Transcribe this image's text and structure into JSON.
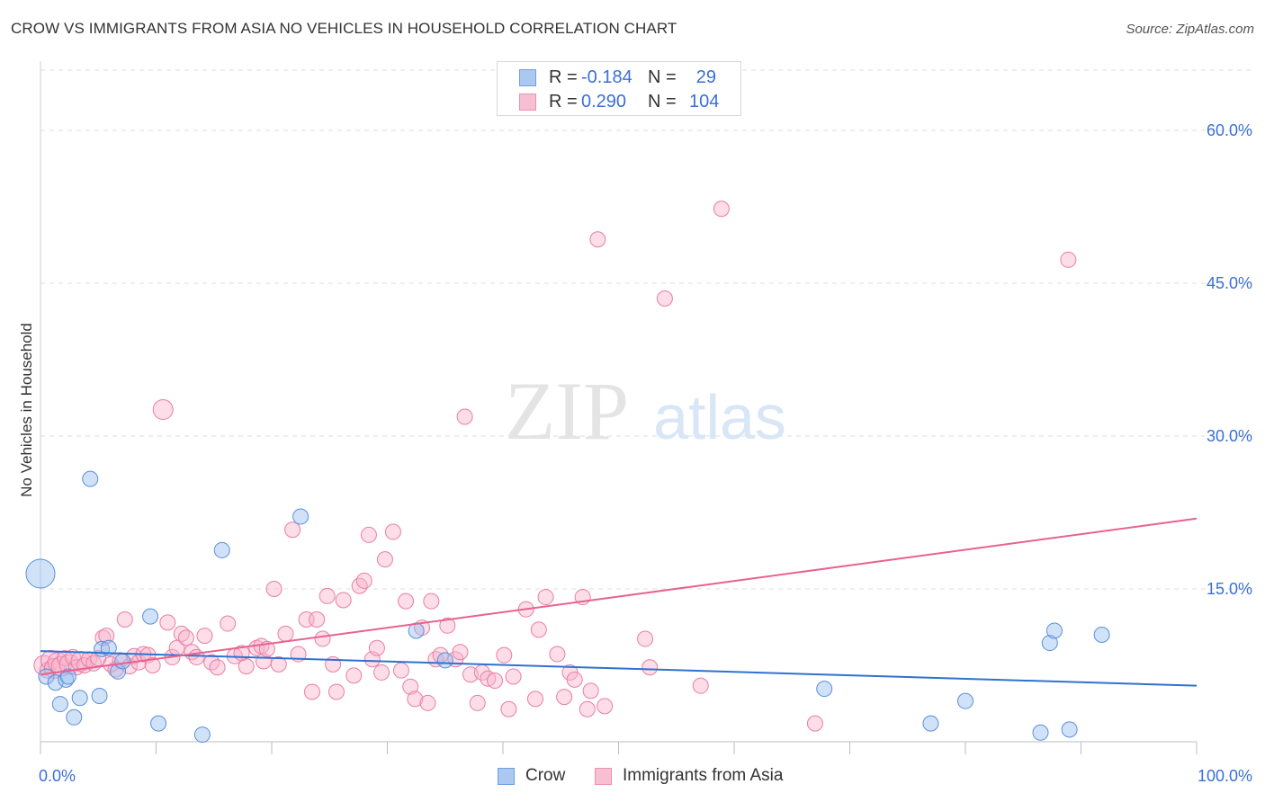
{
  "header": {
    "title": "CROW VS IMMIGRANTS FROM ASIA NO VEHICLES IN HOUSEHOLD CORRELATION CHART",
    "source": "Source: ZipAtlas.com"
  },
  "watermark": {
    "zip": "ZIP",
    "atlas": "atlas"
  },
  "legend_top": {
    "rows": [
      {
        "r_label": "R =",
        "r_value": "-0.184",
        "n_label": "N =",
        "n_value": "29",
        "color": "#aac8f0",
        "border": "#6f9fe0"
      },
      {
        "r_label": "R =",
        "r_value": "0.290",
        "n_label": "N =",
        "n_value": "104",
        "color": "#f8bfd2",
        "border": "#ee8fb0"
      }
    ]
  },
  "legend_bottom": {
    "items": [
      {
        "label": "Crow",
        "color": "#aac8f0",
        "border": "#6f9fe0"
      },
      {
        "label": "Immigrants from Asia",
        "color": "#f8bfd2",
        "border": "#ee8fb0"
      }
    ]
  },
  "colors": {
    "crow_fill": "rgba(150,190,240,0.45)",
    "crow_stroke": "#5a8fdd",
    "crow_line": "#2f72d0",
    "asia_fill": "rgba(248,180,205,0.45)",
    "asia_stroke": "#ea7ea5",
    "asia_line": "#e8628e",
    "grid": "#dddddd",
    "tick_label": "#3a6fd8"
  },
  "chart_data": {
    "type": "scatter",
    "title": "CROW VS IMMIGRANTS FROM ASIA NO VEHICLES IN HOUSEHOLD CORRELATION CHART",
    "xlabel": "",
    "ylabel": "No Vehicles in Household",
    "xlim": [
      0,
      100
    ],
    "ylim": [
      0,
      63
    ],
    "x_tick_labels": [
      "0.0%",
      "100.0%"
    ],
    "y_ticks": [
      15,
      30,
      45,
      60
    ],
    "y_tick_labels": [
      "15.0%",
      "30.0%",
      "45.0%",
      "60.0%"
    ],
    "grid": "horizontal dashed",
    "series": [
      {
        "name": "Crow",
        "r": -0.184,
        "n": 29,
        "trend": {
          "x": [
            0,
            100
          ],
          "y": [
            8.9,
            5.5
          ]
        },
        "points": [
          [
            0,
            16.5,
            3
          ],
          [
            0.5,
            6.4,
            1
          ],
          [
            1.3,
            5.8,
            1
          ],
          [
            1.7,
            3.7,
            1
          ],
          [
            2.2,
            6.1,
            1
          ],
          [
            2.4,
            6.4,
            1
          ],
          [
            2.9,
            2.4,
            1
          ],
          [
            3.4,
            4.3,
            1
          ],
          [
            4.3,
            25.8,
            1
          ],
          [
            5.1,
            4.5,
            1
          ],
          [
            5.3,
            9.1,
            1
          ],
          [
            5.9,
            9.2,
            1
          ],
          [
            6.7,
            6.9,
            1
          ],
          [
            7.1,
            7.9,
            1
          ],
          [
            9.5,
            12.3,
            1
          ],
          [
            10.2,
            1.8,
            1
          ],
          [
            14.0,
            0.7,
            1
          ],
          [
            15.7,
            18.8,
            1
          ],
          [
            22.5,
            22.1,
            1
          ],
          [
            32.5,
            10.9,
            1
          ],
          [
            35.0,
            8.0,
            1
          ],
          [
            67.8,
            5.2,
            1
          ],
          [
            77.0,
            1.8,
            1
          ],
          [
            80.0,
            4.0,
            1
          ],
          [
            86.5,
            0.9,
            1
          ],
          [
            87.3,
            9.7,
            1
          ],
          [
            87.7,
            10.9,
            1
          ],
          [
            89.0,
            1.2,
            1
          ],
          [
            91.8,
            10.5,
            1
          ]
        ]
      },
      {
        "name": "Immigrants from Asia",
        "r": 0.29,
        "n": 104,
        "trend": {
          "x": [
            0,
            100
          ],
          "y": [
            6.6,
            21.9
          ]
        },
        "points": [
          [
            0.3,
            7.5,
            2
          ],
          [
            0.6,
            7.0,
            1
          ],
          [
            0.9,
            8.0,
            2
          ],
          [
            1.2,
            7.2,
            2
          ],
          [
            1.5,
            7.8,
            2
          ],
          [
            1.8,
            7.4,
            2
          ],
          [
            2.1,
            8.2,
            1
          ],
          [
            2.5,
            7.6,
            2
          ],
          [
            2.8,
            8.3,
            1
          ],
          [
            3.1,
            7.3,
            1
          ],
          [
            3.5,
            7.9,
            2
          ],
          [
            3.8,
            7.5,
            1
          ],
          [
            4.2,
            8.1,
            1
          ],
          [
            4.6,
            7.7,
            1
          ],
          [
            5.0,
            8.2,
            1
          ],
          [
            5.4,
            10.2,
            1
          ],
          [
            5.7,
            10.4,
            1
          ],
          [
            6.1,
            7.6,
            1
          ],
          [
            6.5,
            7.1,
            1
          ],
          [
            6.9,
            8.0,
            1
          ],
          [
            7.3,
            12.0,
            1
          ],
          [
            7.7,
            7.4,
            1
          ],
          [
            8.1,
            8.4,
            1
          ],
          [
            8.5,
            7.8,
            1
          ],
          [
            8.9,
            8.6,
            1
          ],
          [
            9.3,
            8.5,
            1
          ],
          [
            9.7,
            7.5,
            1
          ],
          [
            10.6,
            32.6,
            2
          ],
          [
            11.0,
            11.7,
            1
          ],
          [
            11.4,
            8.3,
            1
          ],
          [
            11.8,
            9.2,
            1
          ],
          [
            12.2,
            10.6,
            1
          ],
          [
            12.6,
            10.2,
            1
          ],
          [
            13.1,
            8.8,
            1
          ],
          [
            13.5,
            8.3,
            1
          ],
          [
            14.2,
            10.4,
            1
          ],
          [
            14.8,
            7.8,
            1
          ],
          [
            15.3,
            7.3,
            1
          ],
          [
            16.2,
            11.6,
            1
          ],
          [
            16.8,
            8.4,
            1
          ],
          [
            17.4,
            8.7,
            1
          ],
          [
            17.8,
            7.4,
            1
          ],
          [
            18.7,
            9.2,
            1
          ],
          [
            19.1,
            9.4,
            1
          ],
          [
            19.3,
            7.9,
            1
          ],
          [
            19.6,
            9.1,
            1
          ],
          [
            20.2,
            15.0,
            1
          ],
          [
            20.6,
            7.6,
            1
          ],
          [
            21.2,
            10.6,
            1
          ],
          [
            21.8,
            20.8,
            1
          ],
          [
            22.3,
            8.6,
            1
          ],
          [
            23.0,
            12.0,
            1
          ],
          [
            23.5,
            4.9,
            1
          ],
          [
            23.9,
            12.0,
            1
          ],
          [
            24.4,
            10.1,
            1
          ],
          [
            24.8,
            14.3,
            1
          ],
          [
            25.3,
            7.6,
            1
          ],
          [
            25.6,
            4.9,
            1
          ],
          [
            26.2,
            13.9,
            1
          ],
          [
            27.1,
            6.5,
            1
          ],
          [
            27.6,
            15.3,
            1
          ],
          [
            28.0,
            15.8,
            1
          ],
          [
            28.4,
            20.3,
            1
          ],
          [
            28.7,
            8.1,
            1
          ],
          [
            29.1,
            9.2,
            1
          ],
          [
            29.5,
            6.8,
            1
          ],
          [
            29.8,
            17.9,
            1
          ],
          [
            30.5,
            20.6,
            1
          ],
          [
            31.2,
            7.0,
            1
          ],
          [
            31.6,
            13.8,
            1
          ],
          [
            32.0,
            5.4,
            1
          ],
          [
            32.4,
            4.2,
            1
          ],
          [
            33.0,
            11.2,
            1
          ],
          [
            33.5,
            3.8,
            1
          ],
          [
            33.8,
            13.8,
            1
          ],
          [
            34.2,
            8.1,
            1
          ],
          [
            34.6,
            8.5,
            1
          ],
          [
            35.2,
            11.4,
            1
          ],
          [
            35.9,
            8.1,
            1
          ],
          [
            36.3,
            8.8,
            1
          ],
          [
            36.7,
            31.9,
            1
          ],
          [
            37.2,
            6.6,
            1
          ],
          [
            37.8,
            3.8,
            1
          ],
          [
            38.2,
            6.8,
            1
          ],
          [
            38.7,
            6.2,
            1
          ],
          [
            39.3,
            6.0,
            1
          ],
          [
            40.1,
            8.5,
            1
          ],
          [
            40.5,
            3.2,
            1
          ],
          [
            40.9,
            6.4,
            1
          ],
          [
            42.0,
            13.0,
            1
          ],
          [
            42.8,
            4.2,
            1
          ],
          [
            43.1,
            11.0,
            1
          ],
          [
            43.7,
            14.2,
            1
          ],
          [
            44.7,
            8.6,
            1
          ],
          [
            45.3,
            4.4,
            1
          ],
          [
            45.8,
            6.8,
            1
          ],
          [
            46.2,
            6.1,
            1
          ],
          [
            46.9,
            14.2,
            1
          ],
          [
            47.3,
            3.2,
            1
          ],
          [
            47.6,
            5.0,
            1
          ],
          [
            48.2,
            49.3,
            1
          ],
          [
            48.8,
            3.5,
            1
          ],
          [
            52.3,
            10.1,
            1
          ],
          [
            52.7,
            7.3,
            1
          ],
          [
            54.0,
            43.5,
            1
          ],
          [
            57.1,
            5.5,
            1
          ],
          [
            58.9,
            52.3,
            1
          ],
          [
            67.0,
            1.8,
            1
          ],
          [
            88.9,
            47.3,
            1
          ]
        ]
      }
    ]
  }
}
